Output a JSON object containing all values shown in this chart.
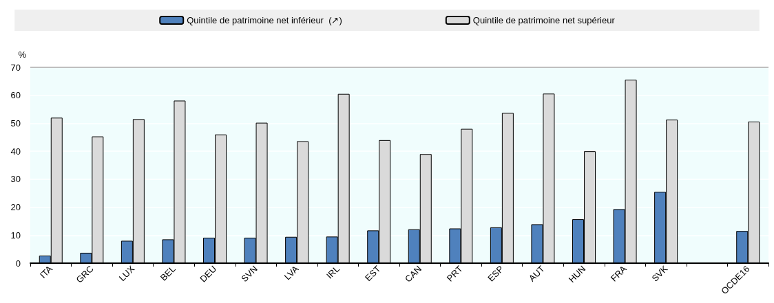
{
  "chart_data": {
    "type": "bar",
    "ylabel": "%",
    "categories": [
      "ITA",
      "GRC",
      "LUX",
      "BEL",
      "DEU",
      "SVN",
      "LVA",
      "IRL",
      "EST",
      "CAN",
      "PRT",
      "ESP",
      "AUT",
      "HUN",
      "FRA",
      "SVK",
      null,
      "OCDE16"
    ],
    "series": [
      {
        "name": "Quintile de patrimoine net inférieur  (↗)",
        "color": "#4f81bd",
        "values": [
          2.7,
          3.7,
          8.0,
          8.5,
          9.1,
          9.1,
          9.4,
          9.5,
          11.7,
          12.1,
          12.4,
          12.8,
          13.9,
          15.7,
          19.3,
          25.5,
          null,
          11.5
        ]
      },
      {
        "name": "Quintile de patrimoine net supérieur",
        "color": "#dadada",
        "values": [
          52.0,
          45.3,
          51.5,
          58.1,
          46.0,
          50.2,
          43.6,
          60.5,
          44.0,
          39.0,
          48.0,
          53.7,
          60.6,
          40.0,
          65.6,
          51.3,
          null,
          50.6
        ]
      }
    ],
    "ylim": [
      0,
      70
    ],
    "yticks": [
      0,
      10,
      20,
      30,
      40,
      50,
      60,
      70
    ],
    "grid": "y",
    "legend": "top"
  }
}
